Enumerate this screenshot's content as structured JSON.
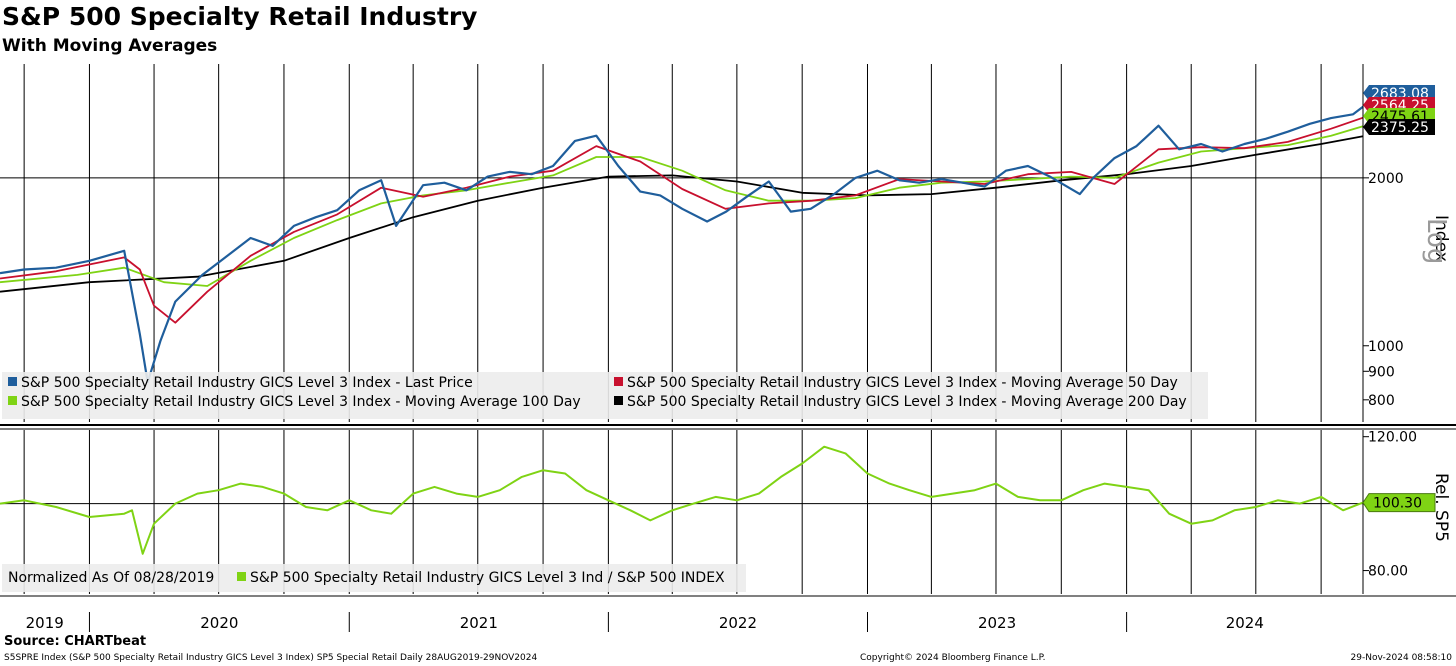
{
  "title": "S&P 500 Specialty Retail Industry",
  "subtitle": "With Moving Averages",
  "source": "Source: CHARTbeat",
  "footer_left": "S5SPRE Index (S&P 500 Specialty Retail Industry GICS Level 3 Index) SP5 Special Retail  Daily 28AUG2019-29NOV2024",
  "footer_mid": "Copyright© 2024 Bloomberg Finance L.P.",
  "footer_right": "29-Nov-2024 08:58:10",
  "colors": {
    "last_price": "#1f5e9c",
    "ma50": "#c8102e",
    "ma100": "#7fd314",
    "ma200": "#000000",
    "relative": "#7fd314",
    "log_label": "#9a9a9a"
  },
  "chart_data": [
    {
      "type": "line",
      "ylabel": "Index",
      "scale_label": "Log",
      "y_scale": "log",
      "ylim": [
        730,
        3200
      ],
      "y_ticks": [
        800,
        900,
        1000,
        2000
      ],
      "y_tick_labels": [
        "800",
        "900",
        "1000",
        "2000"
      ],
      "x_years": [
        "2019",
        "2020",
        "2021",
        "2022",
        "2023",
        "2024"
      ],
      "x_range": [
        "2019-08-28",
        "2024-11-29"
      ],
      "grid": true,
      "legend_position": "bottom-left",
      "last_values": [
        {
          "series": "last_price",
          "label": "2683.08",
          "value": 2683.08
        },
        {
          "series": "ma50",
          "label": "2564.25",
          "value": 2564.25
        },
        {
          "series": "ma100",
          "label": "2475.61",
          "value": 2475.61
        },
        {
          "series": "ma200",
          "label": "2375.25",
          "value": 2375.25
        }
      ],
      "series": [
        {
          "key": "last_price",
          "name": "S&P 500 Specialty Retail Industry GICS Level 3 Index - Last Price",
          "x": [
            "2019-08-28",
            "2019-10-01",
            "2019-11-15",
            "2020-01-01",
            "2020-02-19",
            "2020-03-12",
            "2020-03-23",
            "2020-04-10",
            "2020-05-01",
            "2020-06-08",
            "2020-07-01",
            "2020-08-15",
            "2020-09-15",
            "2020-10-15",
            "2020-11-15",
            "2020-12-15",
            "2021-01-15",
            "2021-02-15",
            "2021-03-08",
            "2021-04-15",
            "2021-05-15",
            "2021-06-15",
            "2021-07-15",
            "2021-08-15",
            "2021-09-15",
            "2021-10-15",
            "2021-11-15",
            "2021-12-15",
            "2022-01-15",
            "2022-02-15",
            "2022-03-15",
            "2022-04-15",
            "2022-05-20",
            "2022-06-16",
            "2022-07-15",
            "2022-08-15",
            "2022-09-15",
            "2022-10-13",
            "2022-11-15",
            "2022-12-15",
            "2023-01-15",
            "2023-02-15",
            "2023-03-15",
            "2023-04-15",
            "2023-05-15",
            "2023-06-15",
            "2023-07-15",
            "2023-08-15",
            "2023-09-15",
            "2023-10-27",
            "2023-11-15",
            "2023-12-15",
            "2024-01-15",
            "2024-02-15",
            "2024-03-15",
            "2024-04-15",
            "2024-05-15",
            "2024-06-15",
            "2024-07-15",
            "2024-08-15",
            "2024-09-15",
            "2024-10-15",
            "2024-11-15",
            "2024-11-29"
          ],
          "values": [
            1350,
            1370,
            1380,
            1420,
            1480,
            1050,
            860,
            1020,
            1200,
            1340,
            1410,
            1560,
            1510,
            1640,
            1700,
            1750,
            1900,
            1980,
            1640,
            1940,
            1960,
            1900,
            2010,
            2050,
            2030,
            2100,
            2330,
            2380,
            2100,
            1890,
            1860,
            1760,
            1670,
            1740,
            1850,
            1970,
            1740,
            1760,
            1870,
            2000,
            2060,
            1980,
            1960,
            1990,
            1960,
            1930,
            2060,
            2100,
            2010,
            1870,
            2000,
            2170,
            2280,
            2480,
            2250,
            2300,
            2230,
            2300,
            2350,
            2420,
            2500,
            2560,
            2600,
            2683.08
          ]
        },
        {
          "key": "ma50",
          "name": "S&P 500 Specialty Retail Industry GICS Level 3 Index - Moving Average 50 Day",
          "x": [
            "2019-08-28",
            "2019-11-15",
            "2020-02-19",
            "2020-03-12",
            "2020-04-01",
            "2020-05-01",
            "2020-06-15",
            "2020-08-15",
            "2020-10-15",
            "2020-12-15",
            "2021-02-15",
            "2021-04-15",
            "2021-06-15",
            "2021-08-15",
            "2021-10-15",
            "2021-12-15",
            "2022-02-15",
            "2022-04-15",
            "2022-06-15",
            "2022-08-15",
            "2022-10-15",
            "2022-12-15",
            "2023-02-15",
            "2023-04-15",
            "2023-06-15",
            "2023-08-15",
            "2023-10-15",
            "2023-12-15",
            "2024-02-15",
            "2024-04-15",
            "2024-06-15",
            "2024-08-15",
            "2024-10-15",
            "2024-11-29"
          ],
          "values": [
            1320,
            1360,
            1440,
            1370,
            1180,
            1100,
            1250,
            1450,
            1600,
            1720,
            1920,
            1850,
            1920,
            2010,
            2060,
            2280,
            2140,
            1910,
            1760,
            1800,
            1820,
            1860,
            1990,
            1970,
            1950,
            2030,
            2050,
            1950,
            2250,
            2270,
            2260,
            2320,
            2450,
            2564.25
          ]
        },
        {
          "key": "ma100",
          "name": "S&P 500 Specialty Retail Industry GICS Level 3 Index - Moving Average 100 Day",
          "x": [
            "2019-08-28",
            "2019-12-15",
            "2020-02-19",
            "2020-04-15",
            "2020-06-15",
            "2020-08-15",
            "2020-10-15",
            "2020-12-15",
            "2021-02-15",
            "2021-04-15",
            "2021-06-15",
            "2021-08-15",
            "2021-10-15",
            "2021-12-15",
            "2022-02-15",
            "2022-04-15",
            "2022-06-15",
            "2022-08-15",
            "2022-10-15",
            "2022-12-15",
            "2023-02-15",
            "2023-04-15",
            "2023-06-15",
            "2023-08-15",
            "2023-10-15",
            "2023-12-15",
            "2024-02-15",
            "2024-04-15",
            "2024-06-15",
            "2024-08-15",
            "2024-10-15",
            "2024-11-29"
          ],
          "values": [
            1300,
            1340,
            1380,
            1300,
            1280,
            1420,
            1560,
            1680,
            1800,
            1860,
            1900,
            1960,
            2020,
            2180,
            2180,
            2060,
            1900,
            1820,
            1820,
            1840,
            1920,
            1960,
            1970,
            1990,
            2010,
            2000,
            2130,
            2230,
            2260,
            2290,
            2380,
            2475.61
          ]
        },
        {
          "key": "ma200",
          "name": "S&P 500 Specialty Retail Industry GICS Level 3 Index - Moving Average 200 Day",
          "x": [
            "2019-08-28",
            "2020-01-01",
            "2020-06-01",
            "2020-10-01",
            "2021-01-01",
            "2021-04-01",
            "2021-07-01",
            "2021-10-01",
            "2022-01-01",
            "2022-04-01",
            "2022-07-01",
            "2022-10-01",
            "2023-01-01",
            "2023-04-01",
            "2023-07-01",
            "2023-10-01",
            "2024-01-01",
            "2024-04-01",
            "2024-07-01",
            "2024-10-01",
            "2024-11-29"
          ],
          "values": [
            1250,
            1300,
            1330,
            1420,
            1560,
            1700,
            1820,
            1920,
            2010,
            2020,
            1970,
            1880,
            1860,
            1870,
            1920,
            1980,
            2030,
            2100,
            2200,
            2300,
            2375.25
          ]
        }
      ]
    },
    {
      "type": "line",
      "ylabel": "Rel. SP5",
      "ylim": [
        73,
        122
      ],
      "y_ticks": [
        80,
        120
      ],
      "y_tick_labels": [
        "80.00",
        "120.00"
      ],
      "reference_line": 100,
      "last_values": [
        {
          "series": "relative",
          "label": "100.30",
          "value": 100.3
        }
      ],
      "legend_position": "bottom-left",
      "series": [
        {
          "key": "relative",
          "name": "S&P 500 Specialty Retail Industry GICS Level 3 Ind / S&P 500 INDEX",
          "x": [
            "2019-08-28",
            "2019-10-01",
            "2019-11-15",
            "2020-01-01",
            "2020-02-19",
            "2020-03-01",
            "2020-03-16",
            "2020-04-01",
            "2020-05-01",
            "2020-06-01",
            "2020-07-01",
            "2020-08-01",
            "2020-09-01",
            "2020-10-01",
            "2020-11-01",
            "2020-12-01",
            "2021-01-01",
            "2021-02-01",
            "2021-03-01",
            "2021-04-01",
            "2021-05-01",
            "2021-06-01",
            "2021-07-01",
            "2021-08-01",
            "2021-09-01",
            "2021-10-01",
            "2021-11-01",
            "2021-12-01",
            "2022-01-01",
            "2022-02-01",
            "2022-03-01",
            "2022-04-01",
            "2022-05-01",
            "2022-06-01",
            "2022-07-01",
            "2022-08-01",
            "2022-09-01",
            "2022-10-01",
            "2022-11-01",
            "2022-12-01",
            "2023-01-01",
            "2023-02-01",
            "2023-03-01",
            "2023-04-01",
            "2023-05-01",
            "2023-06-01",
            "2023-07-01",
            "2023-08-01",
            "2023-09-01",
            "2023-10-01",
            "2023-11-01",
            "2023-12-01",
            "2024-01-01",
            "2024-02-01",
            "2024-03-01",
            "2024-04-01",
            "2024-05-01",
            "2024-06-01",
            "2024-07-01",
            "2024-08-01",
            "2024-09-01",
            "2024-10-01",
            "2024-11-01",
            "2024-11-29"
          ],
          "values": [
            100,
            101,
            99,
            96,
            97,
            98,
            85,
            94,
            100,
            103,
            104,
            106,
            105,
            103,
            99,
            98,
            101,
            98,
            97,
            103,
            105,
            103,
            102,
            104,
            108,
            110,
            109,
            104,
            101,
            98,
            95,
            98,
            100,
            102,
            101,
            103,
            108,
            112,
            117,
            115,
            109,
            106,
            104,
            102,
            103,
            104,
            106,
            102,
            101,
            101,
            104,
            106,
            105,
            104,
            97,
            94,
            95,
            98,
            99,
            101,
            100,
            102,
            98,
            100.3
          ]
        }
      ]
    }
  ]
}
